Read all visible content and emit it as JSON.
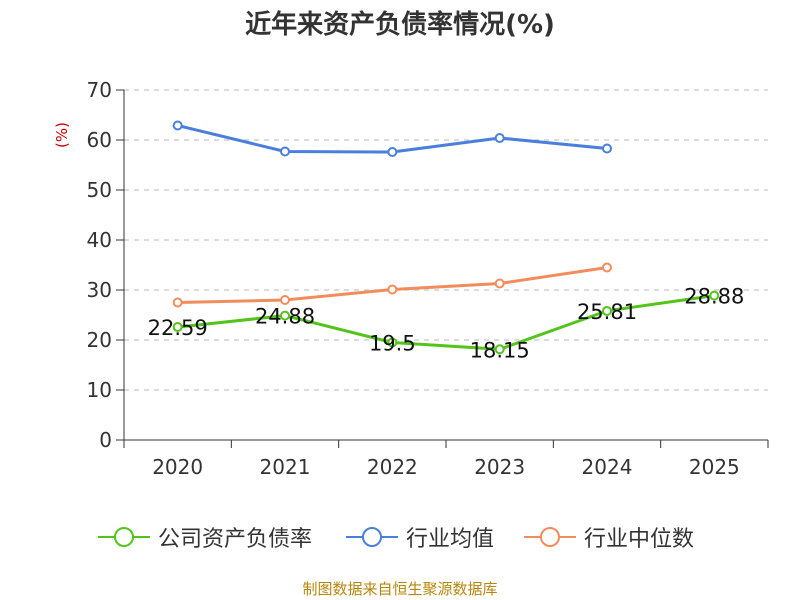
{
  "chart_data": {
    "type": "line",
    "title": "近年来资产负债率情况(%)",
    "ylabel": "(%)",
    "xlabel": "",
    "categories": [
      "2020",
      "2021",
      "2022",
      "2023",
      "2024",
      "2025"
    ],
    "ylim": [
      0,
      70
    ],
    "yticks": [
      0,
      10,
      20,
      30,
      40,
      50,
      60,
      70
    ],
    "grid": true,
    "legend_position": "bottom",
    "series": [
      {
        "name": "公司资产负债率",
        "values": [
          22.59,
          24.88,
          19.5,
          18.15,
          25.81,
          28.88
        ],
        "labels": [
          "22.59",
          "24.88",
          "19.5",
          "18.15",
          "25.81",
          "28.88"
        ],
        "color": "#52c41a"
      },
      {
        "name": "行业均值",
        "values": [
          62.9,
          57.7,
          57.6,
          60.4,
          58.3,
          null
        ],
        "color": "#4a7fdc"
      },
      {
        "name": "行业中位数",
        "values": [
          27.5,
          28.0,
          30.1,
          31.3,
          34.5,
          null
        ],
        "color": "#f28c5c"
      }
    ]
  },
  "source": "制图数据来自恒生聚源数据库"
}
